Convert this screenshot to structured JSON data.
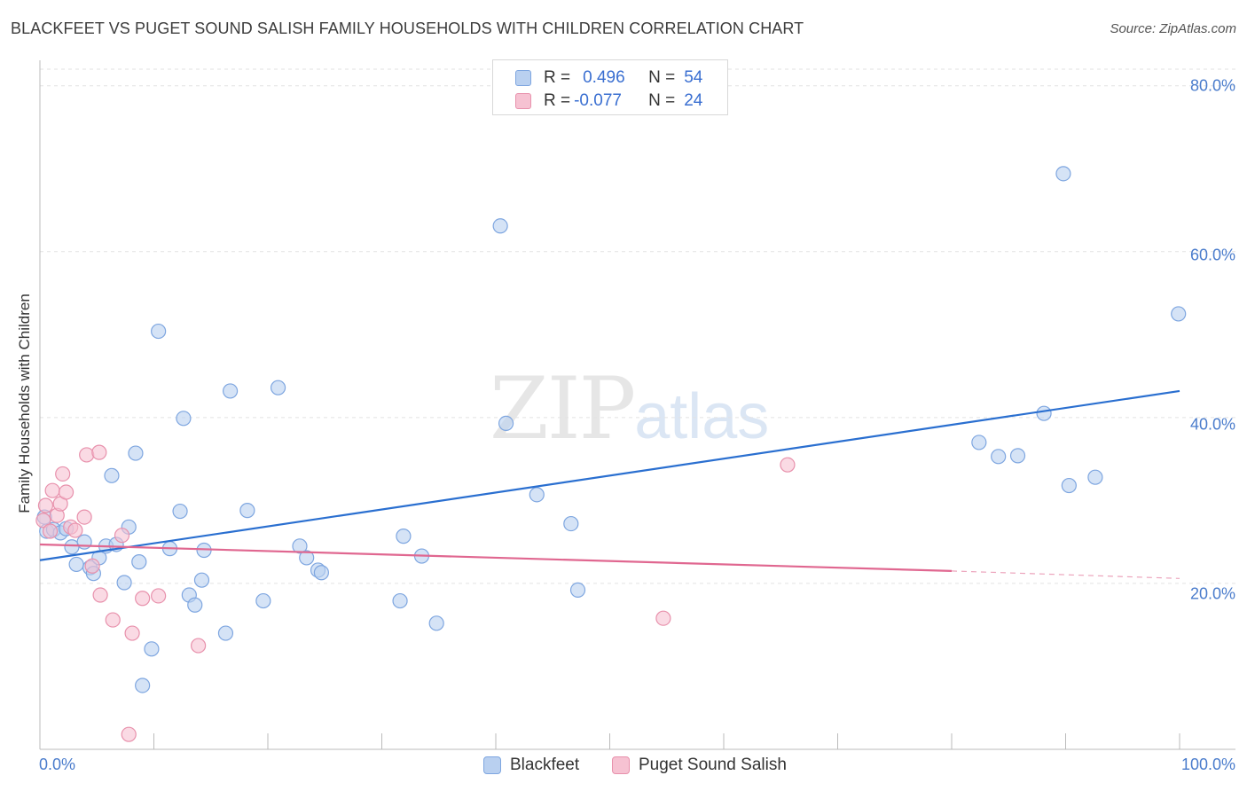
{
  "title": "BLACKFEET VS PUGET SOUND SALISH FAMILY HOUSEHOLDS WITH CHILDREN CORRELATION CHART",
  "source": "Source: ZipAtlas.com",
  "watermark": {
    "zip": "ZIP",
    "atlas": "atlas"
  },
  "legend": {
    "rows": [
      {
        "r_label": "R =",
        "r_value": "0.496",
        "n_label": "N =",
        "n_value": "54"
      },
      {
        "r_label": "R =",
        "r_value": "-0.077",
        "n_label": "N =",
        "n_value": "24"
      }
    ]
  },
  "colors": {
    "blackfeet_fill": "#b9d0f0",
    "blackfeet_stroke": "#7ea6e0",
    "blackfeet_line": "#2a6fd0",
    "salish_fill": "#f6c2d2",
    "salish_stroke": "#e891ac",
    "salish_line": "#e06790",
    "grid": "#e2e2e2",
    "axis": "#bbbbbb"
  },
  "chart_data": {
    "type": "scatter",
    "title": "BLACKFEET VS PUGET SOUND SALISH FAMILY HOUSEHOLDS WITH CHILDREN CORRELATION CHART",
    "xlabel": "",
    "ylabel": "Family Households with Children",
    "xlim": [
      0,
      100
    ],
    "ylim": [
      0,
      82
    ],
    "x_tick_labels": [
      "0.0%",
      "100.0%"
    ],
    "y_ticks": [
      20,
      40,
      60,
      80
    ],
    "y_tick_labels": [
      "20.0%",
      "40.0%",
      "60.0%",
      "80.0%"
    ],
    "grid": true,
    "legend_position": "top-center",
    "series": [
      {
        "name": "Blackfeet",
        "r": 0.496,
        "n": 54,
        "trend": {
          "x0": 0,
          "y0": 22.8,
          "x1": 100,
          "y1": 43.2
        },
        "points": [
          [
            0.4,
            28.0
          ],
          [
            0.6,
            26.3
          ],
          [
            1.2,
            26.5
          ],
          [
            1.8,
            26.1
          ],
          [
            2.3,
            26.6
          ],
          [
            2.8,
            24.4
          ],
          [
            3.2,
            22.3
          ],
          [
            3.9,
            25.0
          ],
          [
            4.4,
            21.9
          ],
          [
            4.7,
            21.2
          ],
          [
            5.2,
            23.1
          ],
          [
            5.8,
            24.5
          ],
          [
            6.3,
            33.0
          ],
          [
            6.7,
            24.7
          ],
          [
            7.4,
            20.1
          ],
          [
            7.8,
            26.8
          ],
          [
            8.4,
            35.7
          ],
          [
            8.7,
            22.6
          ],
          [
            9.0,
            7.7
          ],
          [
            9.8,
            12.1
          ],
          [
            10.4,
            50.4
          ],
          [
            11.4,
            24.2
          ],
          [
            12.3,
            28.7
          ],
          [
            12.6,
            39.9
          ],
          [
            13.1,
            18.6
          ],
          [
            13.6,
            17.4
          ],
          [
            14.2,
            20.4
          ],
          [
            14.4,
            24.0
          ],
          [
            16.3,
            14.0
          ],
          [
            16.7,
            43.2
          ],
          [
            18.2,
            28.8
          ],
          [
            19.6,
            17.9
          ],
          [
            20.9,
            43.6
          ],
          [
            22.8,
            24.5
          ],
          [
            23.4,
            23.1
          ],
          [
            24.4,
            21.6
          ],
          [
            24.7,
            21.3
          ],
          [
            31.6,
            17.9
          ],
          [
            31.9,
            25.7
          ],
          [
            33.5,
            23.3
          ],
          [
            34.8,
            15.2
          ],
          [
            40.4,
            63.1
          ],
          [
            40.9,
            39.3
          ],
          [
            43.6,
            30.7
          ],
          [
            46.6,
            27.2
          ],
          [
            47.2,
            19.2
          ],
          [
            82.4,
            37.0
          ],
          [
            84.1,
            35.3
          ],
          [
            85.8,
            35.4
          ],
          [
            88.1,
            40.5
          ],
          [
            89.8,
            69.4
          ],
          [
            90.3,
            31.8
          ],
          [
            92.6,
            32.8
          ],
          [
            99.9,
            52.5
          ]
        ]
      },
      {
        "name": "Puget Sound Salish",
        "r": -0.077,
        "n": 24,
        "trend": {
          "x0": 0,
          "y0": 24.7,
          "x1": 80,
          "y1": 21.5,
          "dashed_to_x": 100,
          "dashed_to_y": 20.6
        },
        "points": [
          [
            0.3,
            27.6
          ],
          [
            0.5,
            29.4
          ],
          [
            0.9,
            26.3
          ],
          [
            1.1,
            31.2
          ],
          [
            1.5,
            28.2
          ],
          [
            1.8,
            29.6
          ],
          [
            2.0,
            33.2
          ],
          [
            2.3,
            31.0
          ],
          [
            2.7,
            26.8
          ],
          [
            3.1,
            26.4
          ],
          [
            3.9,
            28.0
          ],
          [
            4.1,
            35.5
          ],
          [
            4.6,
            22.1
          ],
          [
            5.3,
            18.6
          ],
          [
            5.2,
            35.8
          ],
          [
            6.4,
            15.6
          ],
          [
            7.2,
            25.8
          ],
          [
            7.8,
            1.8
          ],
          [
            8.1,
            14.0
          ],
          [
            9.0,
            18.2
          ],
          [
            10.4,
            18.5
          ],
          [
            13.9,
            12.5
          ],
          [
            54.7,
            15.8
          ],
          [
            65.6,
            34.3
          ]
        ]
      }
    ]
  },
  "bottom_legend": {
    "blackfeet": "Blackfeet",
    "salish": "Puget Sound Salish"
  }
}
